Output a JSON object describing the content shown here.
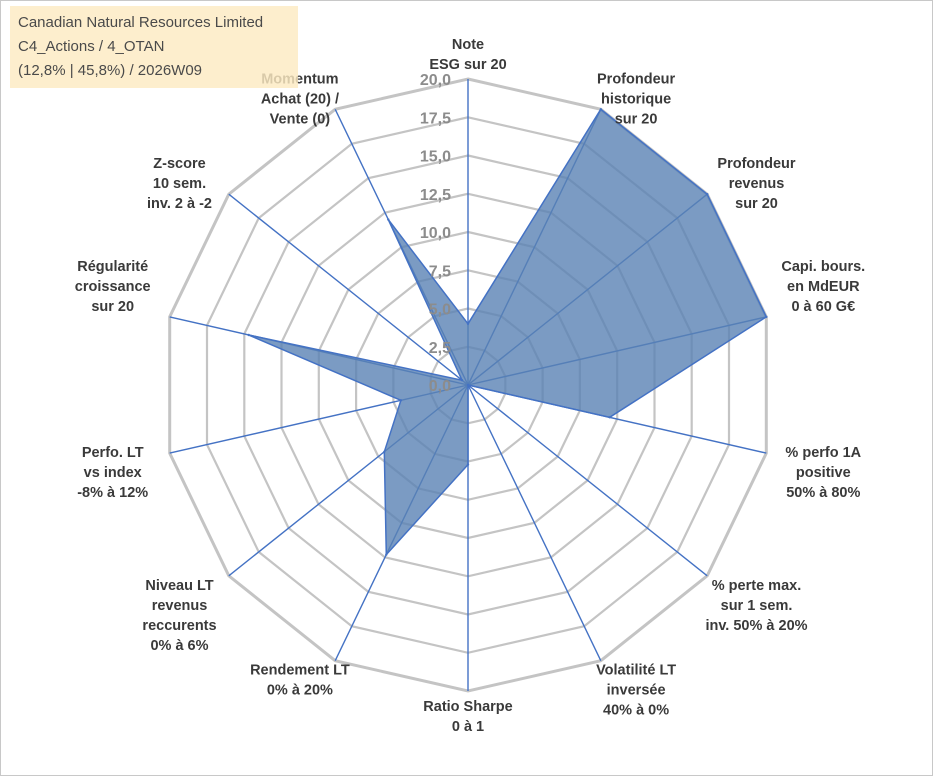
{
  "info": {
    "company": "Canadian Natural Resources Limited",
    "category": "C4_Actions / 4_OTAN",
    "stats": "(12,8% | 45,8%) / 2026W09"
  },
  "colors": {
    "fill": "#5a82b4",
    "stroke": "#4472c4",
    "grid": "#c4c4c4",
    "spoke": "#4472c4",
    "tick": "#8c8c8c",
    "label": "#3a3a3a",
    "info_bg": "#fdeac2"
  },
  "chart_data": {
    "type": "radar",
    "title": "",
    "rmin": 0,
    "rmax": 20,
    "tick_step": 2.5,
    "tick_labels": [
      "0,0",
      "2,5",
      "5,0",
      "7,5",
      "10,0",
      "12,5",
      "15,0",
      "17,5",
      "20,0"
    ],
    "axes": [
      {
        "label": [
          "Note",
          "ESG sur 20"
        ],
        "value": 4
      },
      {
        "label": [
          "Profondeur",
          "historique",
          "sur 20"
        ],
        "value": 20
      },
      {
        "label": [
          "Profondeur",
          "revenus",
          "sur 20"
        ],
        "value": 20
      },
      {
        "label": [
          "Capi. bours.",
          "en MdEUR",
          "0 à 60 G€"
        ],
        "value": 20
      },
      {
        "label": [
          "% perfo 1A",
          "positive",
          "50% à 80%"
        ],
        "value": 9.5
      },
      {
        "label": [
          "% perte max.",
          "sur 1 sem.",
          "inv. 50% à 20%"
        ],
        "value": 0
      },
      {
        "label": [
          "Volatilité LT",
          "inversée",
          "40% à 0%"
        ],
        "value": 0
      },
      {
        "label": [
          "Ratio Sharpe",
          "0 à 1"
        ],
        "value": 5.2
      },
      {
        "label": [
          "Rendement LT",
          "0% à 20%"
        ],
        "value": 12.3
      },
      {
        "label": [
          "Niveau LT",
          "revenus",
          "reccurents",
          "0% à 6%"
        ],
        "value": 7
      },
      {
        "label": [
          "Perfo. LT",
          "vs index",
          "-8% à 12%"
        ],
        "value": 4.5
      },
      {
        "label": [
          "Régularité",
          "croissance",
          "sur 20"
        ],
        "value": 14.7
      },
      {
        "label": [
          "Z-score",
          "10 sem.",
          "inv. 2 à -2"
        ],
        "value": 0.5
      },
      {
        "label": [
          "Momentum",
          "Achat (20) /",
          "Vente (0)"
        ],
        "value": 12
      }
    ]
  }
}
